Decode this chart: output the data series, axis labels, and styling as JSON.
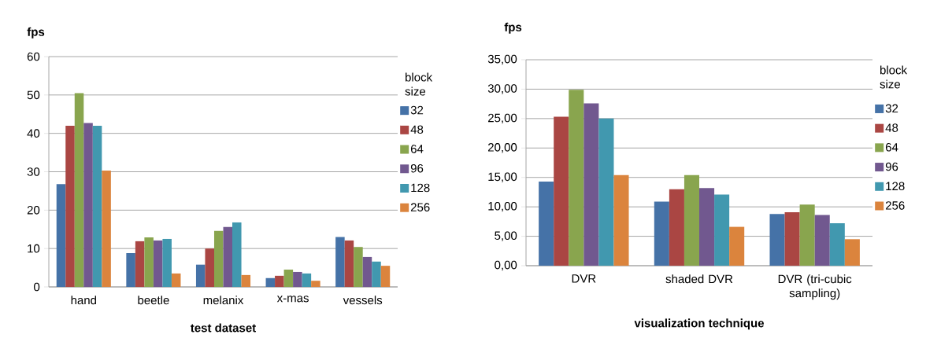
{
  "chart_data": [
    {
      "type": "bar",
      "xlabel": "test dataset",
      "ylabel": "fps",
      "legend_title": "block size",
      "categories": [
        "hand",
        "beetle",
        "melanix",
        "x-mas",
        "vessels"
      ],
      "series": [
        {
          "name": "32",
          "color": "#4572a7",
          "values": [
            26.8,
            8.8,
            5.8,
            2.3,
            13.0
          ]
        },
        {
          "name": "48",
          "color": "#aa4643",
          "values": [
            42.0,
            11.9,
            10.0,
            2.9,
            12.1
          ]
        },
        {
          "name": "64",
          "color": "#89a54e",
          "values": [
            50.5,
            12.9,
            14.6,
            4.5,
            10.4
          ]
        },
        {
          "name": "96",
          "color": "#71588f",
          "values": [
            42.7,
            12.1,
            15.6,
            3.9,
            7.8
          ]
        },
        {
          "name": "128",
          "color": "#4198af",
          "values": [
            42.0,
            12.5,
            16.8,
            3.5,
            6.6
          ]
        },
        {
          "name": "256",
          "color": "#db843d",
          "values": [
            30.3,
            3.5,
            3.1,
            1.6,
            5.5
          ]
        }
      ],
      "ylim": [
        0,
        60
      ],
      "yticks": [
        0,
        10,
        20,
        30,
        40,
        50,
        60
      ],
      "grid": "y",
      "legend": "right"
    },
    {
      "type": "bar",
      "xlabel": "visualization technique",
      "ylabel": "fps",
      "legend_title": "block size",
      "categories": [
        "DVR",
        "shaded DVR",
        "DVR (tri-cubic sampling)"
      ],
      "series": [
        {
          "name": "32",
          "color": "#4572a7",
          "values": [
            14.3,
            10.9,
            8.8
          ]
        },
        {
          "name": "48",
          "color": "#aa4643",
          "values": [
            25.3,
            13.0,
            9.1
          ]
        },
        {
          "name": "64",
          "color": "#89a54e",
          "values": [
            29.9,
            15.4,
            10.4
          ]
        },
        {
          "name": "96",
          "color": "#71588f",
          "values": [
            27.6,
            13.2,
            8.6
          ]
        },
        {
          "name": "128",
          "color": "#4198af",
          "values": [
            25.0,
            12.1,
            7.2
          ]
        },
        {
          "name": "256",
          "color": "#db843d",
          "values": [
            15.4,
            6.6,
            4.5
          ]
        }
      ],
      "ylim": [
        0,
        35
      ],
      "yticks": [
        {
          "value": 0,
          "label": "0,00"
        },
        {
          "value": 5,
          "label": "5,00"
        },
        {
          "value": 10,
          "label": "10,00"
        },
        {
          "value": 15,
          "label": "15,00"
        },
        {
          "value": 20,
          "label": "20,00"
        },
        {
          "value": 25,
          "label": "25,00"
        },
        {
          "value": 30,
          "label": "30,00"
        },
        {
          "value": 35,
          "label": "35,00"
        }
      ],
      "grid": "y",
      "legend": "right"
    }
  ]
}
